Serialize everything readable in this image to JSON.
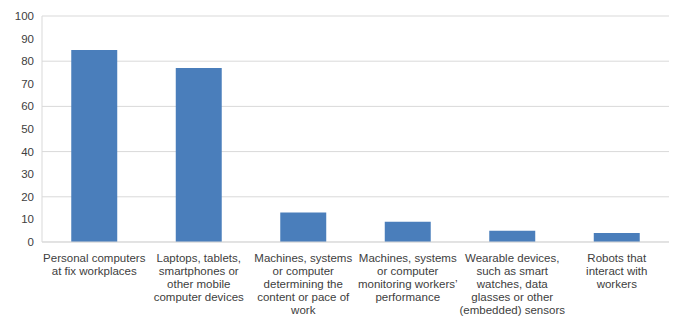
{
  "chart_data": {
    "type": "bar",
    "categories": [
      "Personal computers at fix workplaces",
      "Laptops, tablets, smartphones or other mobile computer devices",
      "Machines, systems or computer determining the content or pace of work",
      "Machines, systems or computer monitoring workers’ performance",
      "Wearable devices, such as smart watches, data glasses or other (embedded) sensors",
      "Robots that interact with workers"
    ],
    "values": [
      85,
      77,
      13,
      9,
      5,
      4
    ],
    "color": "#4a7ebb",
    "ylim": [
      0,
      100
    ],
    "yticks": [
      0,
      10,
      20,
      30,
      40,
      50,
      60,
      70,
      80,
      90,
      100
    ],
    "grid": true
  }
}
